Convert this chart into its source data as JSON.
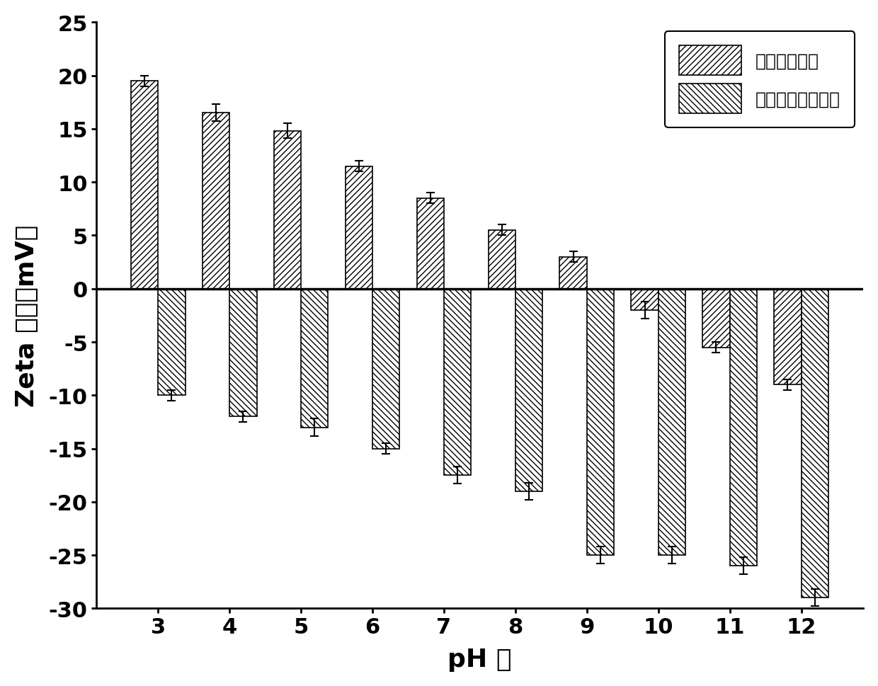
{
  "ph_values": [
    3,
    4,
    5,
    6,
    7,
    8,
    9,
    10,
    11,
    12
  ],
  "gelatin": [
    19.5,
    16.5,
    14.8,
    11.5,
    8.5,
    5.5,
    3.0,
    -2.0,
    -5.5,
    -9.0
  ],
  "gelatin_err": [
    0.5,
    0.8,
    0.7,
    0.5,
    0.5,
    0.5,
    0.5,
    0.8,
    0.5,
    0.5
  ],
  "polydopamine": [
    -10.0,
    -12.0,
    -13.0,
    -15.0,
    -17.5,
    -19.0,
    -25.0,
    -25.0,
    -26.0,
    -29.0
  ],
  "polydopamine_err": [
    0.5,
    0.5,
    0.8,
    0.5,
    0.8,
    0.8,
    0.8,
    0.8,
    0.8,
    0.8
  ],
  "ylabel": "Zeta 电位（mV）",
  "xlabel": "pH 値",
  "legend1": "明胶纳米粒子",
  "legend2": "聚多巴胺纳米粒子",
  "ylim": [
    -30,
    25
  ],
  "yticks": [
    -30,
    -25,
    -20,
    -15,
    -10,
    -5,
    0,
    5,
    10,
    15,
    20,
    25
  ],
  "bar_width": 0.38,
  "hatch1": "////",
  "hatch2": "\\\\\\\\",
  "facecolor": "white",
  "edgecolor": "black",
  "background": "white"
}
